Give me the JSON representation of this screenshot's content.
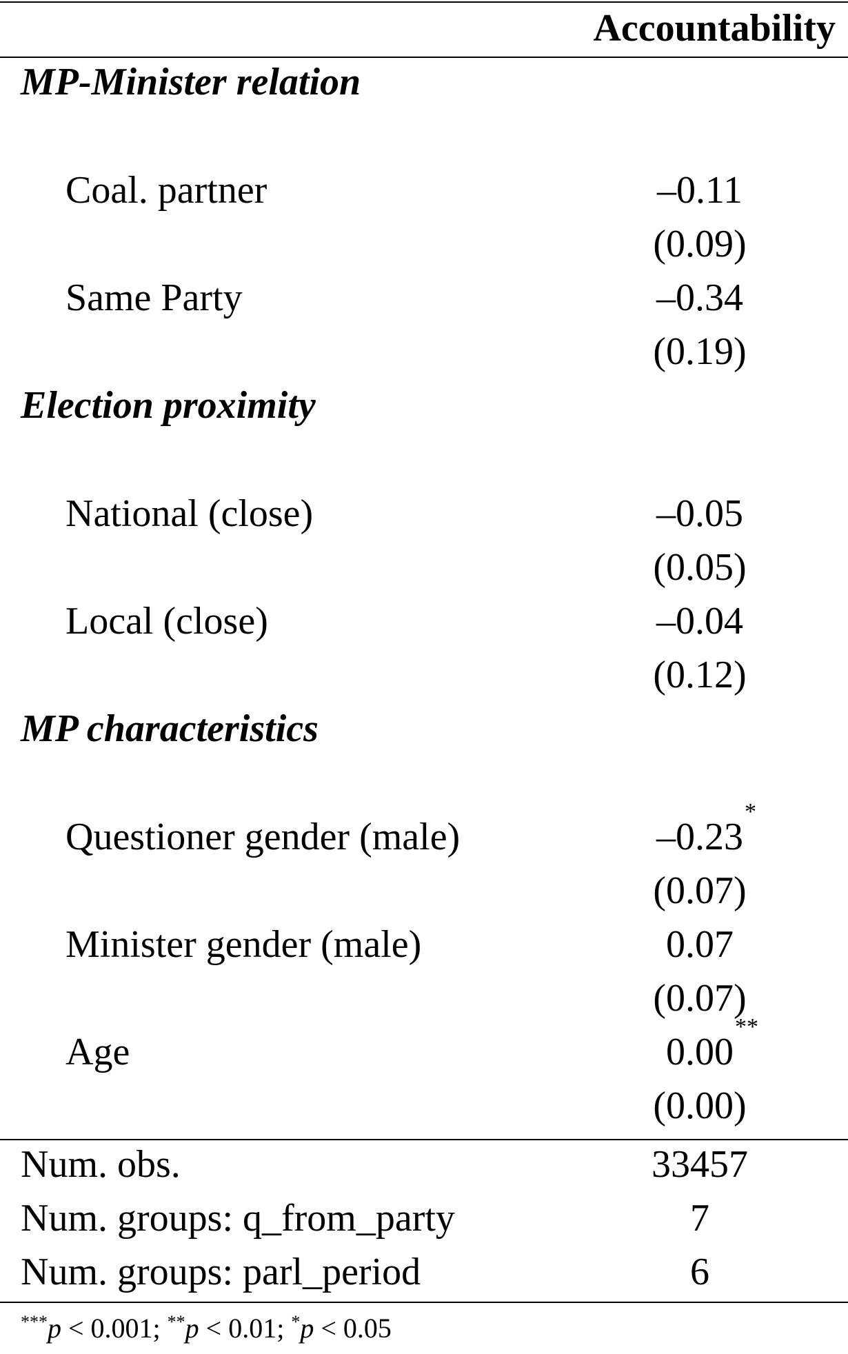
{
  "header": {
    "column": "Accountability"
  },
  "sections": [
    {
      "title": "MP-Minister relation",
      "rows": [
        {
          "label": "Coal. partner",
          "coef": "–0.11",
          "stars": "",
          "se": "(0.09)"
        },
        {
          "label": "Same Party",
          "coef": "–0.34",
          "stars": "",
          "se": "(0.19)"
        }
      ]
    },
    {
      "title": "Election proximity",
      "rows": [
        {
          "label": "National (close)",
          "coef": "–0.05",
          "stars": "",
          "se": "(0.05)"
        },
        {
          "label": "Local (close)",
          "coef": "–0.04",
          "stars": "",
          "se": "(0.12)"
        }
      ]
    },
    {
      "title": "MP characteristics",
      "rows": [
        {
          "label": "Questioner gender (male)",
          "coef": "–0.23",
          "stars": "*",
          "se": "(0.07)"
        },
        {
          "label": "Minister gender (male)",
          "coef": "0.07",
          "stars": "",
          "se": "(0.07)"
        },
        {
          "label": "Age",
          "coef": "0.00",
          "stars": "**",
          "se": "(0.00)"
        }
      ]
    }
  ],
  "stats": [
    {
      "label": "Num. obs.",
      "value": "33457"
    },
    {
      "label": "Num. groups: q_from_party",
      "value": "7"
    },
    {
      "label": "Num. groups: parl_period",
      "value": "6"
    }
  ],
  "footnote": {
    "s1": "***",
    "p1": "p",
    "t1": " < 0.001; ",
    "s2": "**",
    "p2": "p",
    "t2": " < 0.01; ",
    "s3": "*",
    "p3": "p",
    "t3": " < 0.05"
  }
}
